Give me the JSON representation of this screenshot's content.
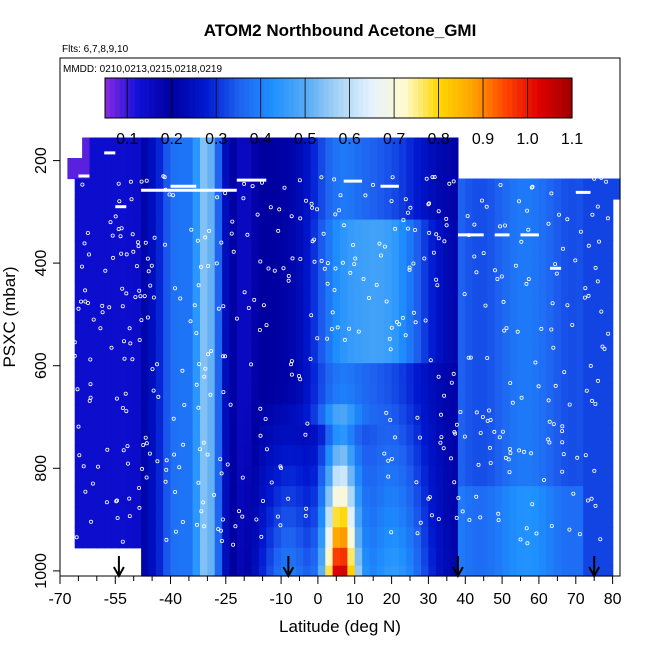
{
  "chart_data": {
    "type": "heatmap",
    "title": "ATOM2 Northbound Acetone_GMI",
    "notes": {
      "flights": "Flts: 6,7,8,9,10",
      "dates": "MMDD: 0210,0213,0215,0218,0219"
    },
    "xlabel": "Latitude (deg N)",
    "ylabel": "PSXC (mbar)",
    "xlim": [
      -70,
      82
    ],
    "ylim": [
      1010,
      0
    ],
    "x_ticks": [
      -70,
      -55,
      -40,
      -25,
      -10,
      0,
      10,
      20,
      30,
      40,
      50,
      60,
      70,
      80
    ],
    "x_minor_ticks": [
      -65,
      -60,
      -50,
      -45,
      -35,
      -30,
      -20,
      -15,
      -5,
      5,
      15,
      25,
      35,
      45,
      55,
      65,
      75
    ],
    "y_ticks": [
      200,
      400,
      600,
      800,
      1000
    ],
    "colorbar": {
      "ticks": [
        0.1,
        0.2,
        0.3,
        0.4,
        0.5,
        0.6,
        0.7,
        0.8,
        0.9,
        1.0,
        1.1
      ],
      "range": [
        0.05,
        1.1
      ],
      "colors": [
        "#8a2be2",
        "#1010d8",
        "#0000a0",
        "#0018d0",
        "#1e60f0",
        "#1e90ff",
        "#55aaf5",
        "#a8d4f5",
        "#e6f2ff",
        "#fffacd",
        "#ffd700",
        "#ffa500",
        "#ff4500",
        "#e00000",
        "#a00000"
      ]
    },
    "flight_arrows_lat": [
      -54,
      -8,
      38,
      75
    ],
    "pressure_levels": [
      175,
      215,
      255,
      295,
      335,
      375,
      415,
      455,
      495,
      535,
      575,
      615,
      655,
      695,
      735,
      775,
      815,
      855,
      895,
      935,
      975,
      1005
    ],
    "lat_start": -68,
    "lat_step": 2
  }
}
